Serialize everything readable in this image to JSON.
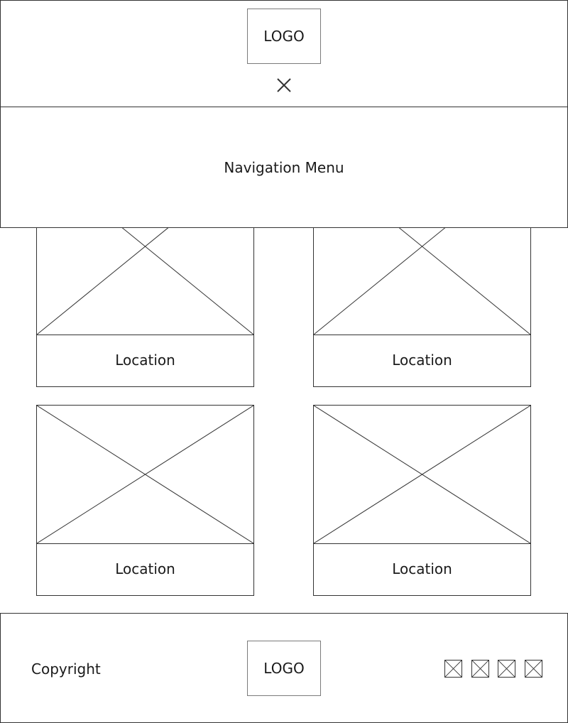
{
  "header": {
    "logo_text": "LOGO",
    "close_icon": "close-icon"
  },
  "nav": {
    "label": "Navigation Menu"
  },
  "locations": [
    {
      "label": "Location",
      "image": "image-placeholder-icon"
    },
    {
      "label": "Location",
      "image": "image-placeholder-icon"
    },
    {
      "label": "Location",
      "image": "image-placeholder-icon"
    },
    {
      "label": "Location",
      "image": "image-placeholder-icon"
    }
  ],
  "footer": {
    "copyright": "Copyright",
    "logo_text": "LOGO",
    "social_icons": [
      "social-icon-1",
      "social-icon-2",
      "social-icon-3",
      "social-icon-4"
    ]
  },
  "colors": {
    "line": "#333333",
    "logo_border": "#7a7a7a",
    "background": "#ffffff"
  }
}
